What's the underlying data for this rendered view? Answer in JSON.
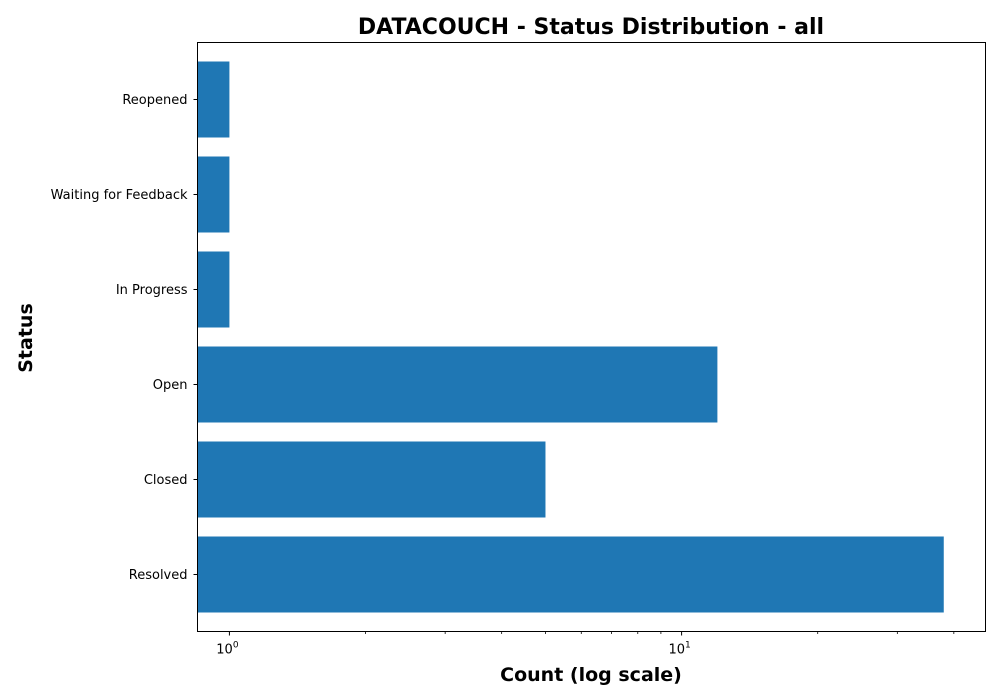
{
  "chart_data": {
    "type": "bar",
    "orientation": "horizontal",
    "title": "DATACOUCH - Status Distribution - all",
    "xlabel": "Count (log scale)",
    "ylabel": "Status",
    "x_scale": "log",
    "xlim": [
      0.85,
      47
    ],
    "categories": [
      "Resolved",
      "Closed",
      "Open",
      "In Progress",
      "Waiting for Feedback",
      "Reopened"
    ],
    "values": [
      38,
      5,
      12,
      1,
      1,
      1
    ],
    "x_major_ticks": [
      {
        "base": "10",
        "exponent": "0",
        "value": 1
      },
      {
        "base": "10",
        "exponent": "1",
        "value": 10
      }
    ],
    "x_minor_ticks": [
      2,
      3,
      4,
      5,
      6,
      7,
      8,
      9,
      20,
      30,
      40
    ],
    "grid": false,
    "bar_color": "#1f77b4"
  }
}
